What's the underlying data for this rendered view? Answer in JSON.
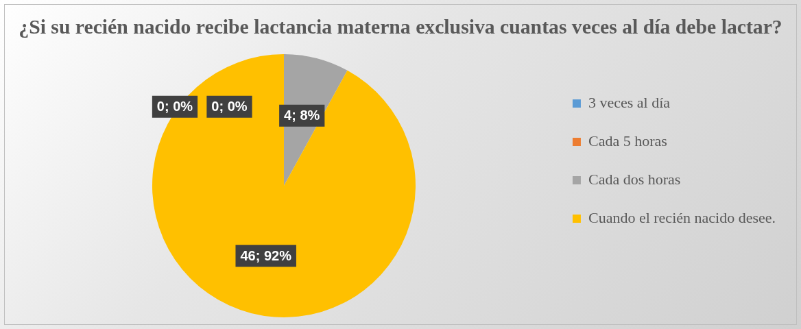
{
  "chart_data": {
    "type": "pie",
    "title": "¿Si su recién nacido recibe lactancia materna exclusiva cuantas veces al día debe lactar?",
    "categories": [
      "3 veces al día",
      "Cada 5 horas",
      "Cada dos horas",
      "Cuando el recién nacido desee."
    ],
    "values": [
      0,
      0,
      4,
      46
    ],
    "colors": [
      "#5b9bd5",
      "#ed7d31",
      "#a5a5a5",
      "#ffc000"
    ],
    "value_labels": [
      "0; 0%",
      "0; 0%",
      "4; 8%",
      "46; 92%"
    ],
    "legend": "right"
  }
}
